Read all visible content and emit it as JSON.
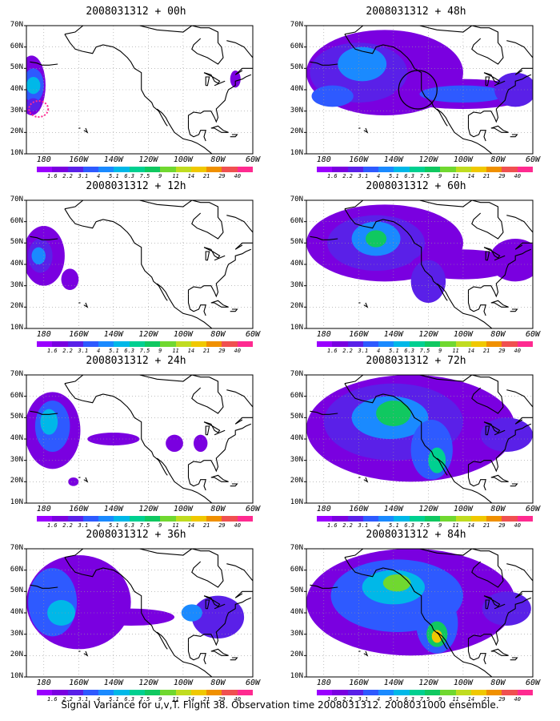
{
  "caption": "Signal Variance for u,v,T. Flight 38. Observation time 2008031312. 2008031000 ensemble.",
  "panels": [
    {
      "title": "2008031312 + 00h"
    },
    {
      "title": "2008031312 + 48h"
    },
    {
      "title": "2008031312 + 12h"
    },
    {
      "title": "2008031312 + 60h"
    },
    {
      "title": "2008031312 + 24h"
    },
    {
      "title": "2008031312 + 72h"
    },
    {
      "title": "2008031312 + 36h"
    },
    {
      "title": "2008031312 + 84h"
    }
  ],
  "lat_labels": [
    "70N",
    "60N",
    "50N",
    "40N",
    "30N",
    "20N",
    "10N"
  ],
  "lon_labels": [
    "180",
    "160W",
    "140W",
    "120W",
    "100W",
    "80W",
    "60W"
  ],
  "colorbar": {
    "ticks": [
      "1.6",
      "2.2",
      "3.1",
      "4",
      "5.1",
      "6.3",
      "7.5",
      "9",
      "11",
      "14",
      "21",
      "29",
      "40"
    ],
    "colors": [
      "#9a00ff",
      "#7a00e0",
      "#5a20e8",
      "#2e5aff",
      "#1a8aff",
      "#00b8e8",
      "#00d090",
      "#10c860",
      "#70d830",
      "#c0dc20",
      "#f0c800",
      "#f09000",
      "#f05050",
      "#ff2a90"
    ]
  }
}
